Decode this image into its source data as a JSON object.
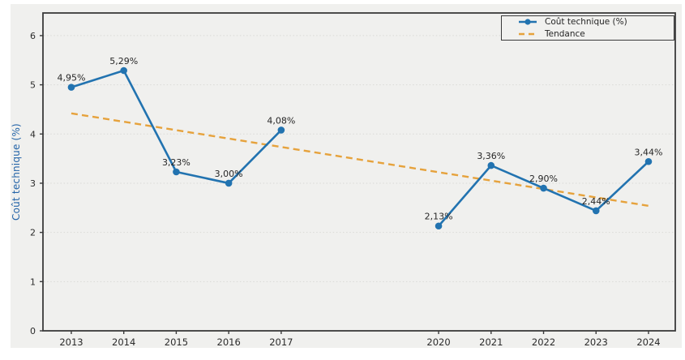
{
  "chart_data": {
    "type": "line",
    "title": "",
    "xlabel": "",
    "ylabel": "Coût technique (%)",
    "x": [
      2013,
      2014,
      2015,
      2016,
      2017,
      2020,
      2021,
      2022,
      2023,
      2024
    ],
    "series": [
      {
        "name": "Coût technique (%)",
        "values": [
          4.95,
          5.29,
          3.23,
          3.0,
          4.08,
          2.13,
          3.36,
          2.9,
          2.44,
          3.44
        ],
        "color": "#2273b0",
        "style": "solid",
        "marker": "circle"
      },
      {
        "name": "Tendance",
        "x": [
          2013,
          2024
        ],
        "values": [
          4.42,
          2.54
        ],
        "color": "#e6a23c",
        "style": "dashed"
      }
    ],
    "point_labels": [
      "4,95%",
      "5,29%",
      "3,23%",
      "3,00%",
      "4,08%",
      "2,13%",
      "3,36%",
      "2,90%",
      "2,44%",
      "3,44%"
    ],
    "xticks": [
      "2013",
      "2014",
      "2015",
      "2016",
      "2017",
      "2020",
      "2021",
      "2022",
      "2023",
      "2024"
    ],
    "yticks": [
      "0",
      "1",
      "2",
      "3",
      "4",
      "5",
      "6"
    ],
    "xlim": [
      2012.46,
      2024.51
    ],
    "ylim": [
      0,
      6.46
    ],
    "grid": "horizontal-dotted",
    "legend_position": "upper-right"
  },
  "colors": {
    "line": "#2273b0",
    "trend": "#e6a23c",
    "figure_background": "#f0f0ee",
    "spine": "#3a3a3a",
    "grid": "#d9d9d6",
    "tick_text": "#2b2b2b",
    "point_label_text": "#262626",
    "ylabel_text": "#2464a8",
    "page_background": "#ffffff"
  }
}
